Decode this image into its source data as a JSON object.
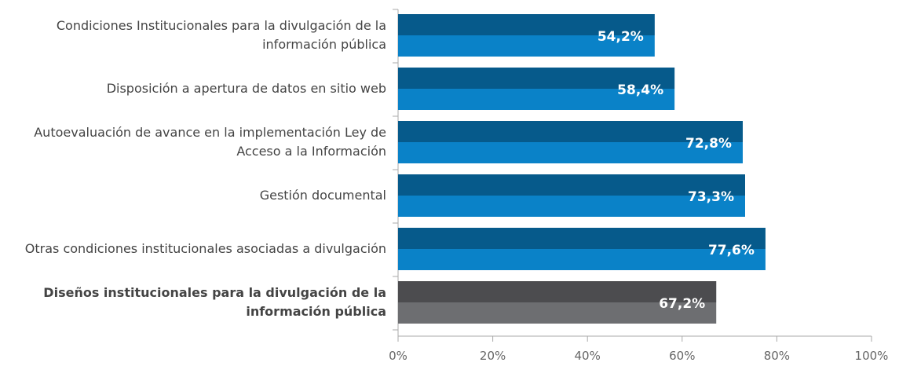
{
  "chart_data": {
    "type": "bar",
    "orientation": "horizontal",
    "categories": [
      "Condiciones Institucionales para la divulgación de la información pública",
      "Disposición a apertura de datos en sitio web",
      "Autoevaluación de avance en la implementación Ley de Acceso a la Información",
      "Gestión documental",
      "Otras condiciones institucionales asociadas a divulgación",
      "Diseños institucionales para la divulgación de la información pública"
    ],
    "values": [
      54.2,
      58.4,
      72.8,
      73.3,
      77.6,
      67.2
    ],
    "value_labels": [
      "54,2%",
      "58,4%",
      "72,8%",
      "73,3%",
      "77,6%",
      "67,2%"
    ],
    "colors": [
      "#0a82c8",
      "#0a82c8",
      "#0a82c8",
      "#0a82c8",
      "#0a82c8",
      "#6d6e71"
    ],
    "xlim": [
      0,
      100
    ],
    "xticks": [
      {
        "value": 0,
        "label": "0%"
      },
      {
        "value": 20,
        "label": "20%"
      },
      {
        "value": 40,
        "label": "40%"
      },
      {
        "value": 60,
        "label": "60%"
      },
      {
        "value": 80,
        "label": "80%"
      },
      {
        "value": 100,
        "label": "100%"
      }
    ]
  }
}
